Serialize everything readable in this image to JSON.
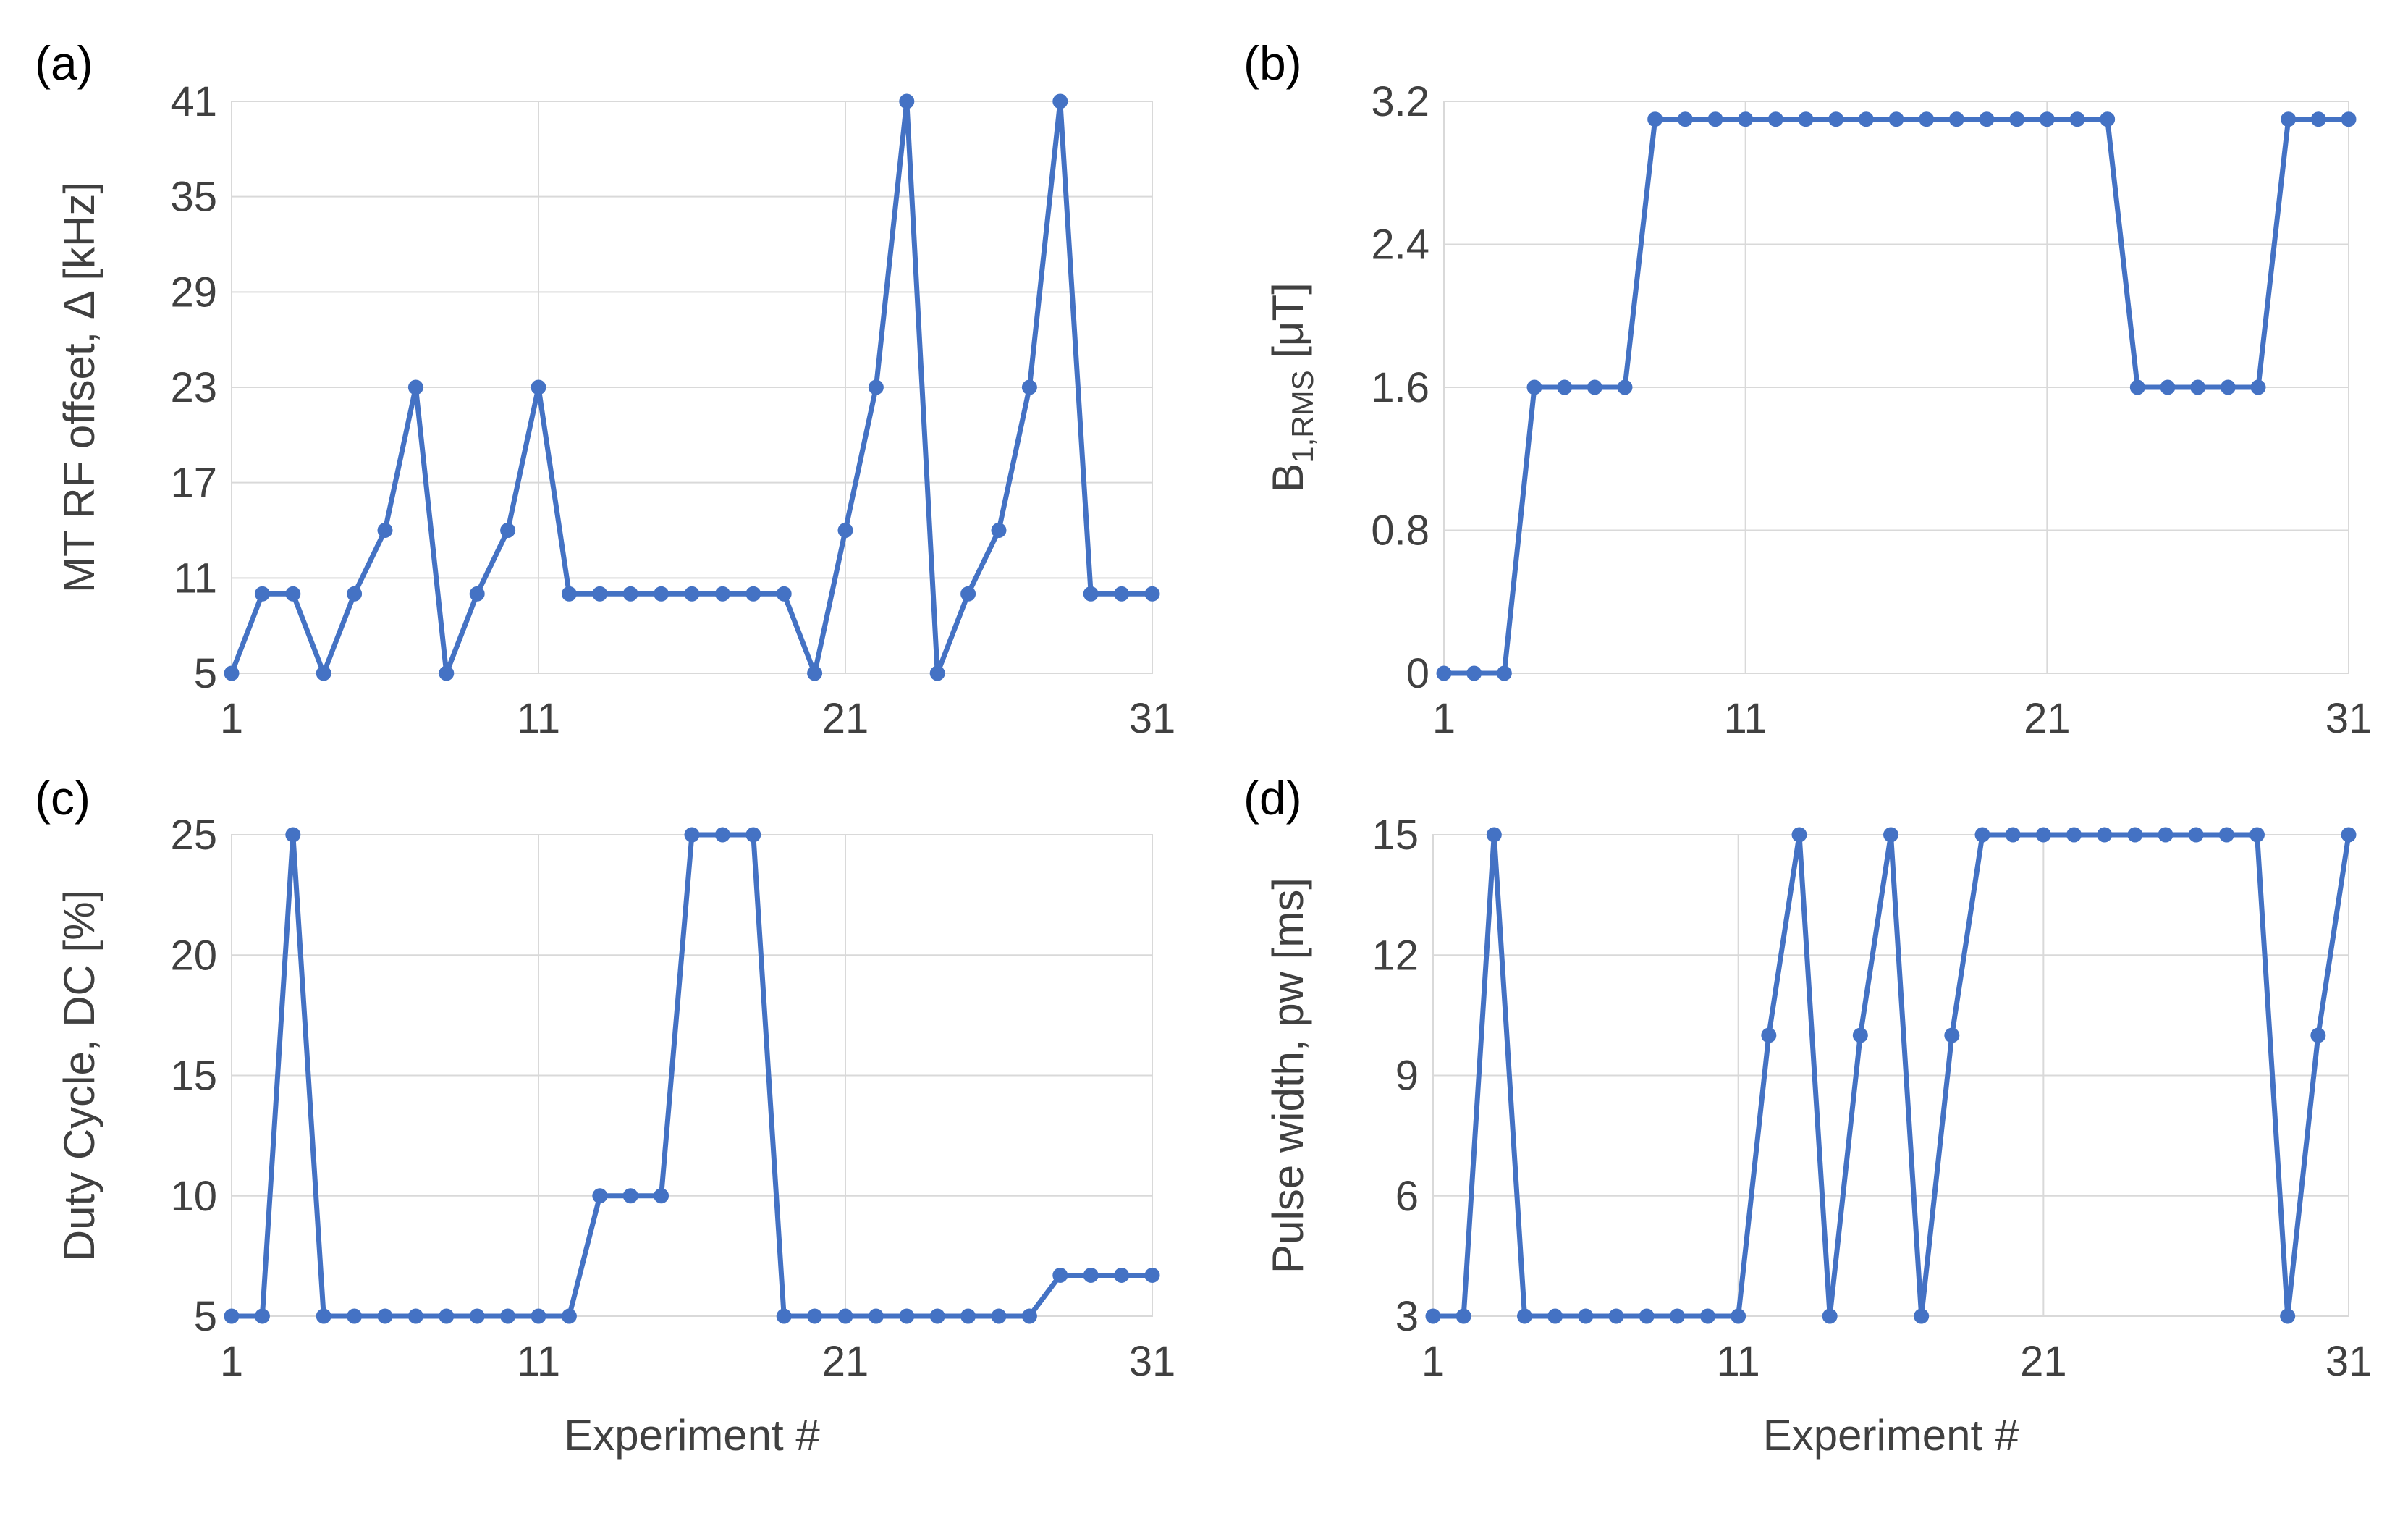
{
  "chart_data": [
    {
      "type": "line",
      "panel_label": "(a)",
      "ylabel": "MT RF offset, Δ [kHz]",
      "xlabel": "",
      "xlim": [
        1,
        31
      ],
      "xticks": [
        1,
        11,
        21,
        31
      ],
      "ylim": [
        5,
        41
      ],
      "yticks": [
        5,
        11,
        17,
        23,
        29,
        35,
        41
      ],
      "grid": true,
      "x": [
        1,
        2,
        3,
        4,
        5,
        6,
        7,
        8,
        9,
        10,
        11,
        12,
        13,
        14,
        15,
        16,
        17,
        18,
        19,
        20,
        21,
        22,
        23,
        24,
        25,
        26,
        27,
        28,
        29,
        30,
        31
      ],
      "series": [
        {
          "name": "MT RF offset",
          "color": "#4472c4",
          "values": [
            5,
            10,
            10,
            5,
            10,
            14,
            23,
            5,
            10,
            14,
            23,
            10,
            10,
            10,
            10,
            10,
            10,
            10,
            10,
            5,
            14,
            23,
            41,
            5,
            10,
            14,
            23,
            41,
            10,
            10,
            10
          ]
        }
      ]
    },
    {
      "type": "line",
      "panel_label": "(b)",
      "ylabel_main": "B",
      "ylabel_sub": "1,RMS",
      "ylabel_unit": " [μT]",
      "xlabel": "",
      "xlim": [
        1,
        31
      ],
      "xticks": [
        1,
        11,
        21,
        31
      ],
      "ylim": [
        0,
        3.2
      ],
      "yticks": [
        0,
        0.8,
        1.6,
        2.4,
        3.2
      ],
      "grid": true,
      "x": [
        1,
        2,
        3,
        4,
        5,
        6,
        7,
        8,
        9,
        10,
        11,
        12,
        13,
        14,
        15,
        16,
        17,
        18,
        19,
        20,
        21,
        22,
        23,
        24,
        25,
        26,
        27,
        28,
        29,
        30,
        31
      ],
      "series": [
        {
          "name": "B1,RMS",
          "color": "#4472c4",
          "values": [
            0,
            0,
            0,
            1.6,
            1.6,
            1.6,
            1.6,
            3.1,
            3.1,
            3.1,
            3.1,
            3.1,
            3.1,
            3.1,
            3.1,
            3.1,
            3.1,
            3.1,
            3.1,
            3.1,
            3.1,
            3.1,
            3.1,
            1.6,
            1.6,
            1.6,
            1.6,
            1.6,
            3.1,
            3.1,
            3.1
          ]
        }
      ]
    },
    {
      "type": "line",
      "panel_label": "(c)",
      "ylabel": "Duty Cycle, DC [%]",
      "xlabel": "Experiment #",
      "xlim": [
        1,
        31
      ],
      "xticks": [
        1,
        11,
        21,
        31
      ],
      "ylim": [
        5,
        25
      ],
      "yticks": [
        5,
        10,
        15,
        20,
        25
      ],
      "grid": true,
      "x": [
        1,
        2,
        3,
        4,
        5,
        6,
        7,
        8,
        9,
        10,
        11,
        12,
        13,
        14,
        15,
        16,
        17,
        18,
        19,
        20,
        21,
        22,
        23,
        24,
        25,
        26,
        27,
        28,
        29,
        30,
        31
      ],
      "series": [
        {
          "name": "Duty Cycle",
          "color": "#4472c4",
          "values": [
            5,
            5,
            25,
            5,
            5,
            5,
            5,
            5,
            5,
            5,
            5,
            5,
            10,
            10,
            10,
            25,
            25,
            25,
            5,
            5,
            5,
            5,
            5,
            5,
            5,
            5,
            5,
            6.7,
            6.7,
            6.7,
            6.7
          ]
        }
      ]
    },
    {
      "type": "line",
      "panel_label": "(d)",
      "ylabel": "Pulse width, pw [ms]",
      "xlabel": "Experiment #",
      "xlim": [
        1,
        31
      ],
      "xticks": [
        1,
        11,
        21,
        31
      ],
      "ylim": [
        3,
        15
      ],
      "yticks": [
        3,
        6,
        9,
        12,
        15
      ],
      "grid": true,
      "x": [
        1,
        2,
        3,
        4,
        5,
        6,
        7,
        8,
        9,
        10,
        11,
        12,
        13,
        14,
        15,
        16,
        17,
        18,
        19,
        20,
        21,
        22,
        23,
        24,
        25,
        26,
        27,
        28,
        29,
        30,
        31
      ],
      "series": [
        {
          "name": "Pulse width",
          "color": "#4472c4",
          "values": [
            3,
            3,
            15,
            3,
            3,
            3,
            3,
            3,
            3,
            3,
            3,
            10,
            15,
            3,
            10,
            15,
            3,
            10,
            15,
            15,
            15,
            15,
            15,
            15,
            15,
            15,
            15,
            15,
            3,
            10,
            15
          ]
        }
      ]
    }
  ]
}
